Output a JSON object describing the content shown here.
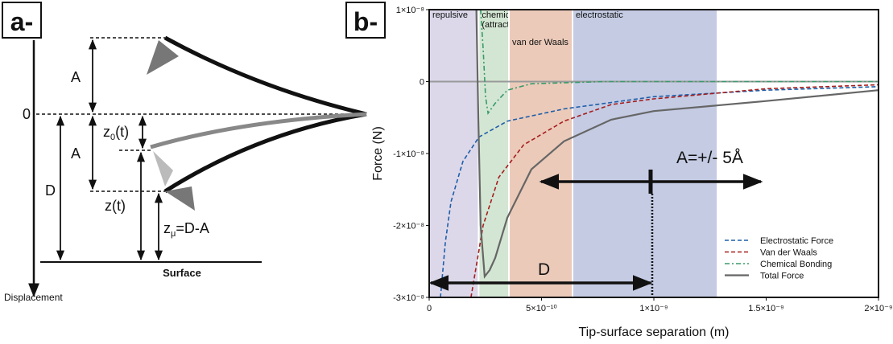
{
  "panel_a": {
    "panel_label": "a-",
    "amplitude_top": "A",
    "zero": "0",
    "z0": {
      "base": "z",
      "sub": "0",
      "rest": "(t)"
    },
    "amplitude_bottom": "A",
    "distance": "D",
    "z_t": "z(t)",
    "z_mu": {
      "base": "z",
      "sub": "μ",
      "rest": "=D-A"
    },
    "surface": "Surface",
    "displacement": "Displacement"
  },
  "chart_data": {
    "type": "line",
    "panel_label": "b-",
    "x_label": "Tip-surface separation (m)",
    "y_label": "Force (N)",
    "xlim": [
      0,
      2e-09
    ],
    "ylim": [
      -3e-08,
      1e-08
    ],
    "xticks": [
      0,
      {
        "value": 5e-10,
        "label": "5×10⁻¹⁰"
      },
      {
        "value": 1e-09,
        "label": "1×10⁻⁹"
      },
      {
        "value": 1.5e-09,
        "label": "1.5×10⁻⁹"
      },
      {
        "value": 2e-09,
        "label": "2×10⁻⁹"
      }
    ],
    "yticks": [
      {
        "value": 1e-08,
        "label": "1×10⁻⁸"
      },
      0,
      {
        "value": -1e-08,
        "label": "-1×10⁻⁸"
      },
      {
        "value": -2e-08,
        "label": "-2×10⁻⁸"
      },
      {
        "value": -3e-08,
        "label": "-3×10⁻⁸"
      }
    ],
    "regions": [
      {
        "label": [
          "repulsive"
        ],
        "start": 0,
        "end": 2.2e-10,
        "color": "#dcd8ea"
      },
      {
        "label": [
          "chemical",
          "(attractive)"
        ],
        "start": 2.2e-10,
        "end": 3.55e-10,
        "color": "#d3e6d3"
      },
      {
        "label": [
          "van der Waals"
        ],
        "start": 3.55e-10,
        "end": 6.38e-10,
        "color": "#ebcab9"
      },
      {
        "label": [
          "electrostatic"
        ],
        "start": 6.38e-10,
        "end": 1.28e-09,
        "color": "#c4cbe3"
      }
    ],
    "series": [
      {
        "name": "Electrostatic Force",
        "color": "#1f5ea8",
        "dash": "dashed",
        "x": [
          5e-11,
          7.2e-11,
          9.7e-11,
          1.5e-10,
          2.22e-10,
          3.48e-10,
          6e-10,
          1e-09,
          1.5e-09,
          2e-09
        ],
        "values": [
          -3e-08,
          -2.23e-08,
          -1.67e-08,
          -1.11e-08,
          -7.7e-09,
          -5.5e-09,
          -3.8e-09,
          -2.1e-09,
          -1.2e-09,
          -7e-10
        ]
      },
      {
        "name": "Van der Waals",
        "color": "#a51d1d",
        "dash": "dashed",
        "x": [
          1.86e-10,
          2.4e-10,
          3.1e-10,
          4.2e-10,
          6e-10,
          8.1e-10,
          1e-09,
          1.5e-09,
          2e-09
        ],
        "values": [
          -3e-08,
          -2e-08,
          -1.33e-08,
          -8.8e-09,
          -5.5e-09,
          -3.2e-09,
          -2.4e-09,
          -1e-09,
          -4.5e-10
        ]
      },
      {
        "name": "Chemical Bonding",
        "color": "#3a9a6a",
        "dash": "dashdot",
        "x": [
          2.29e-10,
          2.4e-10,
          2.51e-10,
          2.62e-10,
          2.94e-10,
          3.48e-10,
          4.55e-10,
          7.8e-10,
          2e-09
        ],
        "values": [
          1e-08,
          4.6e-09,
          -2.1e-09,
          -4.4e-09,
          -3e-09,
          -1.2e-09,
          -3e-10,
          0,
          0
        ]
      },
      {
        "name": "Total Force",
        "color": "#666666",
        "dash": "solid",
        "x": [
          2.1e-10,
          2.19e-10,
          2.29e-10,
          2.47e-10,
          2.69e-10,
          2.94e-10,
          3.48e-10,
          4.55e-10,
          6e-10,
          8.1e-10,
          1e-09,
          1.5e-09,
          2e-09
        ],
        "values": [
          1e-08,
          -5.5e-09,
          -2e-08,
          -2.71e-08,
          -2.62e-08,
          -2.45e-08,
          -1.89e-08,
          -1.22e-08,
          -8.3e-09,
          -5.3e-09,
          -4.1e-09,
          -2.7e-09,
          -1.2e-09
        ]
      }
    ],
    "annotations": {
      "amplitude": "A=+/- 5Å",
      "distance": "D"
    }
  }
}
